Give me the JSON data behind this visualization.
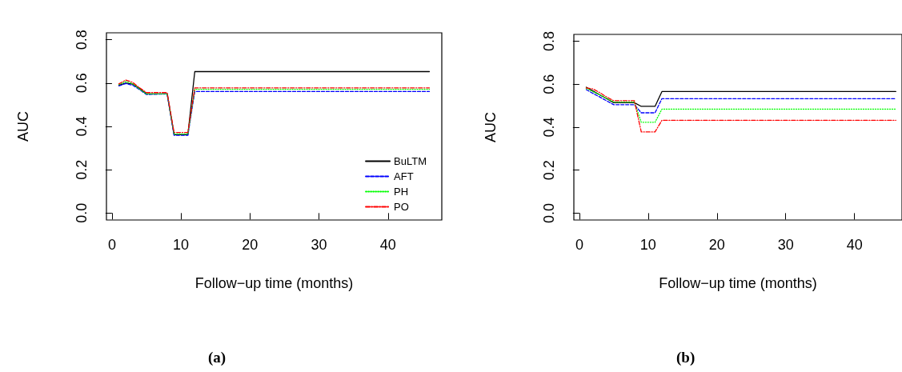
{
  "chart_data": [
    {
      "type": "line",
      "title": "(a)",
      "xlabel": "Follow−up time (months)",
      "ylabel": "AUC",
      "xlim": [
        -0.8,
        47.8
      ],
      "xticks": [
        0,
        10,
        20,
        30,
        40
      ],
      "ylim": [
        -0.032,
        0.832
      ],
      "yticks": [
        {
          "value": 0,
          "label": "0.0"
        },
        {
          "value": 0.2,
          "label": "0.2"
        },
        {
          "value": 0.4,
          "label": "0.4"
        },
        {
          "value": 0.6,
          "label": "0.6"
        },
        {
          "value": 0.8,
          "label": "0.8"
        }
      ],
      "grid": false,
      "legend": "bottom right",
      "marker": "none",
      "x": [
        1,
        2,
        3,
        4,
        5,
        8,
        9,
        11,
        12,
        46
      ],
      "series": [
        {
          "name": "BuLTM",
          "color": "#000000",
          "line_style": "solid",
          "values": [
            0.59,
            0.6,
            0.595,
            0.575,
            0.55,
            0.55,
            0.362,
            0.362,
            0.653,
            0.653
          ]
        },
        {
          "name": "AFT",
          "color": "#0000ff",
          "line_style": "dashed",
          "values": [
            0.587,
            0.598,
            0.59,
            0.57,
            0.547,
            0.55,
            0.359,
            0.359,
            0.561,
            0.561
          ]
        },
        {
          "name": "PH",
          "color": "#00ff00",
          "line_style": "dotted",
          "values": [
            0.593,
            0.607,
            0.597,
            0.572,
            0.55,
            0.55,
            0.365,
            0.365,
            0.571,
            0.571
          ]
        },
        {
          "name": "PO",
          "color": "#ff0000",
          "line_style": "dashdot",
          "values": [
            0.596,
            0.614,
            0.603,
            0.578,
            0.556,
            0.556,
            0.372,
            0.372,
            0.578,
            0.578
          ]
        }
      ]
    },
    {
      "type": "line",
      "title": "(b)",
      "xlabel": "Follow−up time (months)",
      "ylabel": "AUC",
      "xlim": [
        -0.8,
        46.9
      ],
      "xticks": [
        0,
        10,
        20,
        30,
        40
      ],
      "ylim": [
        -0.032,
        0.832
      ],
      "yticks": [
        {
          "value": 0,
          "label": "0.0"
        },
        {
          "value": 0.2,
          "label": "0.2"
        },
        {
          "value": 0.4,
          "label": "0.4"
        },
        {
          "value": 0.6,
          "label": "0.6"
        },
        {
          "value": 0.8,
          "label": "0.8"
        }
      ],
      "grid": false,
      "marker": "none",
      "x": [
        1,
        2,
        3,
        4,
        5,
        8,
        9,
        11,
        12,
        46
      ],
      "series": [
        {
          "color": "#000000",
          "line_style": "solid",
          "values": [
            0.586,
            0.568,
            0.55,
            0.532,
            0.514,
            0.514,
            0.497,
            0.497,
            0.566,
            0.566
          ]
        },
        {
          "color": "#0000ff",
          "line_style": "dashed",
          "values": [
            0.575,
            0.557,
            0.54,
            0.522,
            0.505,
            0.505,
            0.467,
            0.467,
            0.533,
            0.533
          ]
        },
        {
          "color": "#00ff00",
          "line_style": "dotted",
          "values": [
            0.581,
            0.565,
            0.55,
            0.533,
            0.517,
            0.517,
            0.423,
            0.423,
            0.484,
            0.484
          ]
        },
        {
          "color": "#ff0000",
          "line_style": "dashdot",
          "values": [
            0.583,
            0.578,
            0.56,
            0.54,
            0.523,
            0.523,
            0.378,
            0.378,
            0.432,
            0.432
          ]
        }
      ]
    }
  ]
}
